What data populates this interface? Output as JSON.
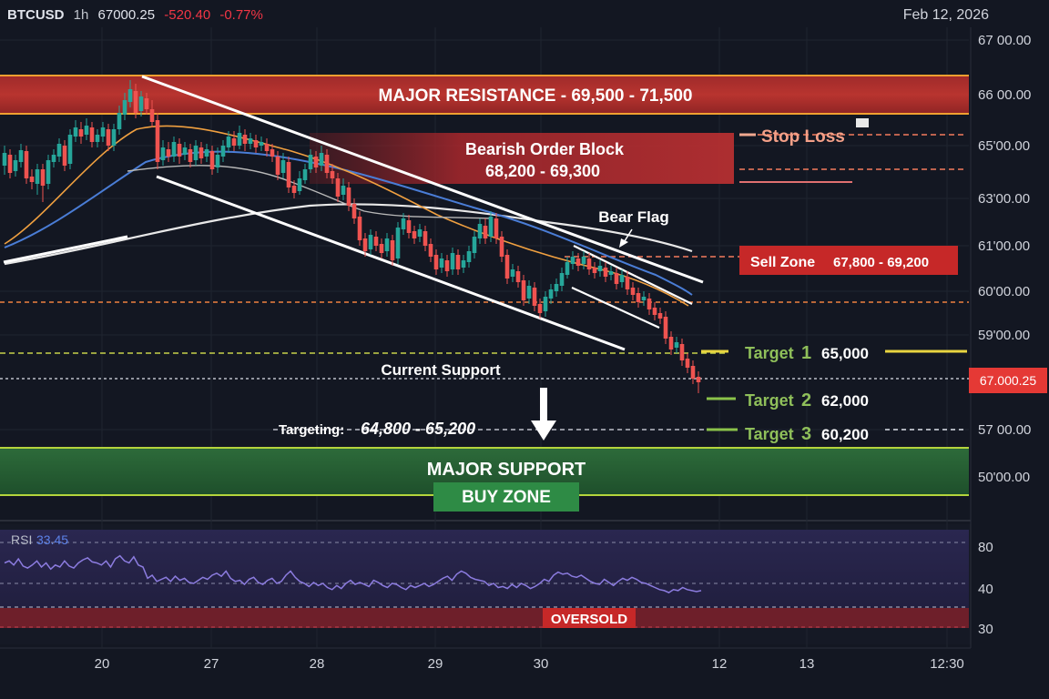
{
  "header": {
    "symbol": "BTCUSD",
    "timeframe": "1h",
    "price": "67000.25",
    "change": "-520.40",
    "change_pct": "-0.77%",
    "date": "Feb 12, 2026"
  },
  "chart_data": {
    "type": "candlestick",
    "colors": {
      "up": "#26a69a",
      "down": "#ef5350",
      "background": "#131722"
    },
    "y_axis_labels": [
      "67 00.00",
      "66 00.00",
      "65'00.00",
      "63'00.00",
      "61'00.00",
      "60'00.00",
      "59'00.00",
      "57 00.00",
      "50'00.00"
    ],
    "x_axis_labels": [
      "20",
      "27",
      "28",
      "29",
      "30",
      "12",
      "13",
      "12:30"
    ],
    "price_tag": "67.000.25",
    "zones": {
      "resistance": "MAJOR RESISTANCE - 69,500 - 71,500",
      "order_block_title": "Bearish Order Block",
      "order_block_range": "68,200 - 69,300",
      "support_title": "MAJOR  SUPPORT",
      "buy_zone": "BUY ZONE"
    },
    "annotations": {
      "stop_loss": "Stop Loss",
      "bear_flag": "Bear Flag",
      "sell_zone_label": "Sell Zone",
      "sell_zone_range": "67,800 - 69,200",
      "current_support": "Current Support",
      "targeting_label": "Targeting:",
      "targeting_range": "64,800 - 65,200"
    },
    "targets": [
      {
        "label": "Target",
        "num": "1",
        "value": "65,000"
      },
      {
        "label": "Target",
        "num": "2",
        "value": "62,000"
      },
      {
        "label": "Target",
        "num": "3",
        "value": "60,200"
      }
    ],
    "candles": [
      [
        5,
        182,
        168,
        192,
        160
      ],
      [
        11,
        170,
        190,
        196,
        164
      ],
      [
        17,
        188,
        176,
        194,
        170
      ],
      [
        23,
        178,
        165,
        184,
        158
      ],
      [
        29,
        166,
        196,
        202,
        160
      ],
      [
        35,
        194,
        200,
        208,
        186
      ],
      [
        41,
        202,
        186,
        214,
        180
      ],
      [
        47,
        186,
        204,
        222,
        180
      ],
      [
        53,
        202,
        176,
        208,
        170
      ],
      [
        59,
        178,
        170,
        184,
        164
      ],
      [
        65,
        172,
        158,
        178,
        152
      ],
      [
        71,
        160,
        182,
        188,
        154
      ],
      [
        77,
        180,
        148,
        186,
        142
      ],
      [
        83,
        150,
        140,
        156,
        132
      ],
      [
        89,
        142,
        150,
        158,
        134
      ],
      [
        95,
        148,
        138,
        154,
        130
      ],
      [
        101,
        140,
        156,
        162,
        134
      ],
      [
        107,
        156,
        148,
        162,
        142
      ],
      [
        113,
        150,
        140,
        156,
        134
      ],
      [
        119,
        142,
        160,
        166,
        136
      ],
      [
        125,
        160,
        142,
        166,
        136
      ],
      [
        131,
        142,
        124,
        148,
        116
      ],
      [
        137,
        126,
        110,
        132,
        102
      ],
      [
        143,
        112,
        98,
        118,
        88
      ],
      [
        149,
        100,
        124,
        130,
        92
      ],
      [
        155,
        122,
        106,
        128,
        100
      ],
      [
        161,
        108,
        120,
        126,
        102
      ],
      [
        167,
        120,
        134,
        140,
        110
      ],
      [
        173,
        132,
        178,
        186,
        124
      ],
      [
        179,
        176,
        162,
        182,
        154
      ],
      [
        185,
        164,
        172,
        178,
        156
      ],
      [
        191,
        172,
        156,
        178,
        150
      ],
      [
        197,
        158,
        172,
        180,
        152
      ],
      [
        203,
        170,
        162,
        176,
        156
      ],
      [
        209,
        164,
        178,
        184,
        158
      ],
      [
        215,
        176,
        160,
        182,
        154
      ],
      [
        221,
        162,
        174,
        180,
        156
      ],
      [
        227,
        172,
        164,
        178,
        158
      ],
      [
        233,
        166,
        186,
        192,
        160
      ],
      [
        239,
        184,
        170,
        190,
        162
      ],
      [
        245,
        172,
        160,
        178,
        154
      ],
      [
        251,
        162,
        150,
        168,
        144
      ],
      [
        257,
        152,
        160,
        166,
        144
      ],
      [
        263,
        160,
        146,
        164,
        138
      ],
      [
        269,
        148,
        158,
        166,
        142
      ],
      [
        275,
        158,
        152,
        164,
        146
      ],
      [
        281,
        154,
        162,
        168,
        148
      ],
      [
        287,
        160,
        156,
        166,
        150
      ],
      [
        293,
        158,
        166,
        172,
        152
      ],
      [
        299,
        164,
        172,
        178,
        158
      ],
      [
        305,
        172,
        192,
        198,
        166
      ],
      [
        311,
        190,
        176,
        196,
        168
      ],
      [
        317,
        178,
        206,
        212,
        172
      ],
      [
        323,
        204,
        212,
        218,
        198
      ],
      [
        329,
        210,
        196,
        214,
        188
      ],
      [
        335,
        198,
        186,
        202,
        180
      ],
      [
        341,
        186,
        170,
        190,
        164
      ],
      [
        347,
        172,
        184,
        190,
        166
      ],
      [
        353,
        182,
        168,
        188,
        160
      ],
      [
        359,
        170,
        190,
        196,
        164
      ],
      [
        365,
        188,
        196,
        202,
        180
      ],
      [
        371,
        196,
        216,
        222,
        190
      ],
      [
        377,
        214,
        204,
        220,
        196
      ],
      [
        383,
        206,
        226,
        232,
        200
      ],
      [
        389,
        224,
        240,
        246,
        218
      ],
      [
        395,
        238,
        264,
        270,
        232
      ],
      [
        401,
        262,
        276,
        282,
        256
      ],
      [
        407,
        274,
        258,
        280,
        252
      ],
      [
        413,
        260,
        270,
        276,
        254
      ],
      [
        419,
        268,
        278,
        284,
        262
      ],
      [
        425,
        276,
        262,
        282,
        256
      ],
      [
        431,
        264,
        286,
        292,
        258
      ],
      [
        437,
        284,
        250,
        290,
        244
      ],
      [
        443,
        252,
        240,
        258,
        234
      ],
      [
        449,
        242,
        256,
        262,
        236
      ],
      [
        455,
        254,
        262,
        268,
        248
      ],
      [
        461,
        260,
        252,
        266,
        246
      ],
      [
        467,
        254,
        270,
        276,
        248
      ],
      [
        473,
        268,
        282,
        288,
        262
      ],
      [
        479,
        280,
        296,
        302,
        274
      ],
      [
        485,
        294,
        284,
        300,
        278
      ],
      [
        491,
        286,
        298,
        304,
        280
      ],
      [
        497,
        296,
        278,
        302,
        272
      ],
      [
        503,
        280,
        296,
        302,
        274
      ],
      [
        509,
        294,
        286,
        300,
        280
      ],
      [
        515,
        288,
        276,
        294,
        270
      ],
      [
        521,
        278,
        260,
        284,
        254
      ],
      [
        527,
        262,
        246,
        268,
        240
      ],
      [
        533,
        248,
        262,
        268,
        240
      ],
      [
        539,
        260,
        238,
        266,
        232
      ],
      [
        545,
        240,
        262,
        268,
        234
      ],
      [
        551,
        260,
        282,
        288,
        254
      ],
      [
        557,
        280,
        306,
        312,
        274
      ],
      [
        563,
        304,
        296,
        310,
        290
      ],
      [
        569,
        298,
        310,
        316,
        292
      ],
      [
        575,
        308,
        330,
        336,
        302
      ],
      [
        581,
        328,
        314,
        334,
        308
      ],
      [
        587,
        316,
        336,
        342,
        310
      ],
      [
        593,
        334,
        344,
        350,
        328
      ],
      [
        599,
        342,
        326,
        348,
        320
      ],
      [
        605,
        328,
        318,
        334,
        312
      ],
      [
        611,
        320,
        312,
        326,
        306
      ],
      [
        617,
        314,
        300,
        320,
        294
      ],
      [
        623,
        302,
        288,
        306,
        282
      ],
      [
        629,
        290,
        282,
        296,
        276
      ],
      [
        635,
        284,
        292,
        298,
        278
      ],
      [
        641,
        290,
        282,
        296,
        276
      ],
      [
        647,
        284,
        296,
        302,
        278
      ],
      [
        653,
        294,
        300,
        306,
        288
      ],
      [
        659,
        298,
        292,
        304,
        286
      ],
      [
        665,
        294,
        304,
        310,
        288
      ],
      [
        671,
        302,
        298,
        308,
        292
      ],
      [
        677,
        300,
        312,
        318,
        294
      ],
      [
        683,
        310,
        302,
        316,
        296
      ],
      [
        689,
        304,
        318,
        324,
        298
      ],
      [
        695,
        316,
        324,
        330,
        310
      ],
      [
        701,
        322,
        332,
        338,
        316
      ],
      [
        707,
        330,
        326,
        336,
        320
      ],
      [
        713,
        328,
        340,
        346,
        322
      ],
      [
        719,
        338,
        346,
        352,
        332
      ],
      [
        725,
        344,
        350,
        356,
        338
      ],
      [
        731,
        348,
        372,
        378,
        342
      ],
      [
        737,
        370,
        384,
        390,
        364
      ],
      [
        743,
        382,
        376,
        388,
        370
      ],
      [
        749,
        378,
        396,
        402,
        372
      ],
      [
        755,
        394,
        404,
        410,
        388
      ],
      [
        761,
        402,
        416,
        422,
        396
      ],
      [
        767,
        414,
        420,
        432,
        408
      ]
    ],
    "rsi": {
      "label": "RSI",
      "value": "33.45",
      "levels": [
        "80",
        "40",
        "30"
      ],
      "oversold": "OVERSOLD",
      "values": [
        60,
        62,
        58,
        64,
        57,
        55,
        58,
        62,
        56,
        60,
        54,
        58,
        56,
        62,
        57,
        55,
        60,
        63,
        65,
        61,
        60,
        58,
        62,
        56,
        64,
        67,
        62,
        60,
        66,
        58,
        56,
        45,
        48,
        42,
        44,
        46,
        42,
        47,
        43,
        45,
        41,
        40,
        43,
        46,
        44,
        48,
        50,
        47,
        52,
        45,
        42,
        43,
        39,
        44,
        46,
        41,
        39,
        43,
        45,
        40,
        42,
        48,
        52,
        46,
        42,
        40,
        37,
        41,
        38,
        40,
        36,
        34,
        38,
        35,
        40,
        43,
        39,
        41,
        39,
        37,
        43,
        41,
        38,
        36,
        40,
        39,
        36,
        34,
        38,
        36,
        38,
        40,
        37,
        39,
        42,
        45,
        47,
        43,
        49,
        52,
        50,
        46,
        44,
        43,
        42,
        38,
        40,
        36,
        37,
        35,
        39,
        36,
        40,
        38,
        35,
        37,
        40,
        44,
        42,
        48,
        51,
        49,
        50,
        47,
        46,
        48,
        45,
        42,
        40,
        39,
        44,
        41,
        38,
        42,
        45,
        43,
        46,
        44,
        41,
        40,
        38,
        36,
        34,
        33,
        31,
        34,
        33,
        36,
        34,
        33,
        32,
        33
      ]
    }
  }
}
